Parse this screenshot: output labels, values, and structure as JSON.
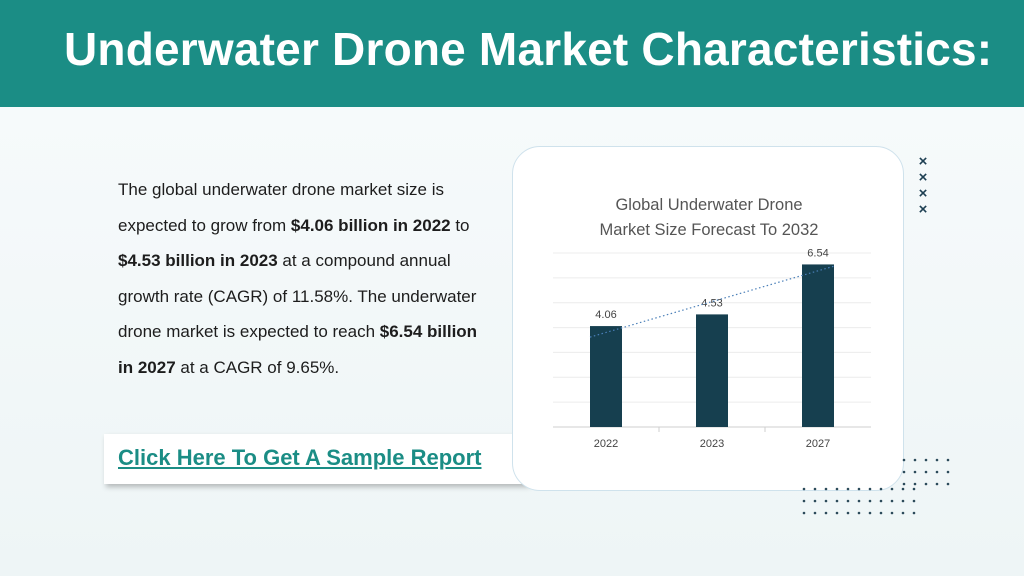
{
  "header": {
    "title": "Underwater Drone Market Characteristics:"
  },
  "body": {
    "p1": "The global underwater drone market size is expected to grow from ",
    "b1": "$4.06 billion in 2022",
    "p2": " to ",
    "b2": "$4.53 billion in 2023",
    "p3": " at a compound annual growth rate (CAGR) of 11.58%. The underwater drone market is expected to reach ",
    "b3": "$6.54 billion in 2027",
    "p4": " at a CAGR of 9.65%."
  },
  "cta": {
    "label": "Click Here To Get A Sample Report"
  },
  "decor": {
    "x_mark": "×"
  },
  "colors": {
    "brand": "#1b8d85",
    "bar": "#163f4f",
    "trend": "#4a7fb8"
  },
  "chart_data": {
    "type": "bar",
    "title_lines": [
      "Global Underwater Drone",
      "Market Size Forecast To 2032"
    ],
    "categories": [
      "2022",
      "2023",
      "2027"
    ],
    "values": [
      4.06,
      4.53,
      6.54
    ],
    "data_labels": [
      "4.06",
      "4.53",
      "6.54"
    ],
    "ylim": [
      0,
      7
    ],
    "grid": true,
    "trendline": "linear dotted",
    "legend": "none"
  }
}
